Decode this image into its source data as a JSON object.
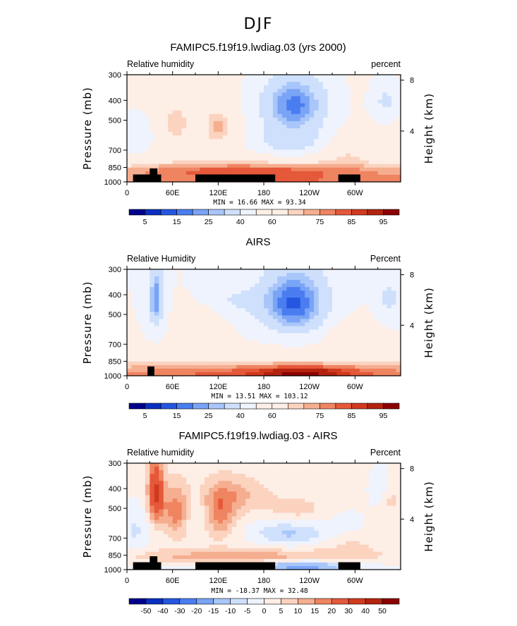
{
  "figure": {
    "title": "DJF"
  },
  "colors": {
    "scale": [
      "#00008b",
      "#0a2fc0",
      "#2456e0",
      "#4a7df0",
      "#7aa4f5",
      "#a8c6fa",
      "#cfe0fc",
      "#eef3fd",
      "#fdeee6",
      "#fbd3bf",
      "#f6ae90",
      "#ef8461",
      "#e5583a",
      "#d13a1f",
      "#b3230f",
      "#8b0000"
    ]
  },
  "chart_data": [
    {
      "type": "heatmap",
      "title": "FAMIPC5.f19f19.lwdiag.03 (yrs 2000)",
      "left_label": "Relative humidity",
      "right_label": "percent",
      "ylabel": "Pressure (mb)",
      "y2label": "Height (km)",
      "x_ticks": [
        "0",
        "60E",
        "120E",
        "180",
        "120W",
        "60W"
      ],
      "y_ticks": [
        "300",
        "400",
        "500",
        "700",
        "850",
        "1000"
      ],
      "y2_ticks": [
        "8",
        "4"
      ],
      "min_max_text": "MIN =   16.66   MAX =   93.34",
      "min": 16.66,
      "max": 93.34,
      "colorbar_levels": [
        5,
        10,
        15,
        20,
        25,
        30,
        40,
        50,
        60,
        65,
        70,
        75,
        80,
        85,
        90,
        95
      ],
      "colorbar_labels": [
        "5",
        "15",
        "25",
        "40",
        "60",
        "75",
        "85",
        "95"
      ],
      "land_blocks": [
        {
          "x0": 8,
          "x1": 45,
          "p_top": 920
        },
        {
          "x0": 30,
          "x1": 40,
          "p_top": 860
        },
        {
          "x0": 90,
          "x1": 195,
          "p_top": 920
        },
        {
          "x0": 278,
          "x1": 307,
          "p_top": 920
        }
      ]
    },
    {
      "type": "heatmap",
      "title": "AIRS",
      "left_label": "Relative Humidity",
      "right_label": "Percent",
      "ylabel": "Pressure (mb)",
      "y2label": "Height (km)",
      "x_ticks": [
        "0",
        "60E",
        "120E",
        "180",
        "120W",
        "60W"
      ],
      "y_ticks": [
        "300",
        "400",
        "500",
        "700",
        "850",
        "1000"
      ],
      "y2_ticks": [
        "8",
        "4"
      ],
      "min_max_text": "MIN =   13.51   MAX =  103.12",
      "min": 13.51,
      "max": 103.12,
      "colorbar_levels": [
        5,
        10,
        15,
        20,
        25,
        30,
        40,
        50,
        60,
        65,
        70,
        75,
        80,
        85,
        90,
        95
      ],
      "colorbar_labels": [
        "5",
        "15",
        "25",
        "40",
        "60",
        "75",
        "85",
        "95"
      ],
      "land_blocks": [
        {
          "x0": 27,
          "x1": 36,
          "p_top": 900
        }
      ]
    },
    {
      "type": "heatmap",
      "title": "FAMIPC5.f19f19.lwdiag.03 - AIRS",
      "left_label": "Relative humidity",
      "right_label": "Percent",
      "ylabel": "Pressure (mb)",
      "y2label": "Height (km)",
      "x_ticks": [
        "0",
        "60E",
        "120E",
        "180",
        "120W",
        "60W"
      ],
      "y_ticks": [
        "300",
        "400",
        "500",
        "700",
        "850",
        "1000"
      ],
      "y2_ticks": [
        "8",
        "4"
      ],
      "min_max_text": "MIN = -18.37   MAX =   32.48",
      "min": -18.37,
      "max": 32.48,
      "colorbar_levels": [
        -50,
        -40,
        -30,
        -20,
        -15,
        -10,
        -5,
        0,
        5,
        10,
        15,
        20,
        30,
        40,
        50
      ],
      "colorbar_labels": [
        "-50",
        "-40",
        "-30",
        "-20",
        "-15",
        "-10",
        "-5",
        "0",
        "5",
        "10",
        "15",
        "20",
        "30",
        "40",
        "50"
      ],
      "land_blocks": [
        {
          "x0": 8,
          "x1": 45,
          "p_top": 920
        },
        {
          "x0": 30,
          "x1": 40,
          "p_top": 860
        },
        {
          "x0": 90,
          "x1": 195,
          "p_top": 920
        },
        {
          "x0": 278,
          "x1": 307,
          "p_top": 920
        }
      ]
    }
  ]
}
